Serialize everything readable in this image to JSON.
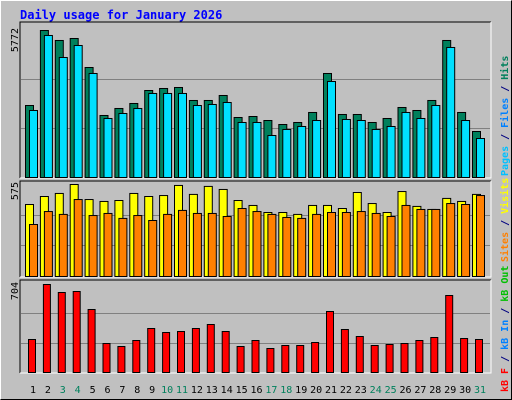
{
  "title": "Daily usage for January 2026",
  "chart_data": [
    {
      "type": "bar",
      "ylim": [
        0,
        5772
      ],
      "yticks": [
        5772
      ],
      "grid_lines": [
        1924,
        3848
      ],
      "legend": [
        {
          "name": "Pages",
          "color": "#00c0ff"
        },
        {
          "name": "/",
          "color": "#000080"
        },
        {
          "name": "Files",
          "color": "#0080ff"
        },
        {
          "name": "/",
          "color": "#000080"
        },
        {
          "name": "Hits",
          "color": "#00805c"
        }
      ],
      "series": [
        {
          "color": "#00805c",
          "values": [
            2827,
            5772,
            5380,
            5458,
            4319,
            2435,
            2710,
            2906,
            3416,
            3495,
            3534,
            3024,
            3024,
            3220,
            2356,
            2395,
            2238,
            2081,
            2160,
            2553,
            4084,
            2474,
            2474,
            2160,
            2317,
            2749,
            2631,
            3024,
            5380,
            2553,
            1806
          ]
        },
        {
          "color": "#00e0ff",
          "values": [
            2631,
            5576,
            4712,
            5183,
            4084,
            2317,
            2513,
            2710,
            3299,
            3299,
            3299,
            2827,
            2867,
            2945,
            2160,
            2160,
            1649,
            1885,
            2003,
            2238,
            3770,
            2278,
            2238,
            1885,
            2003,
            2553,
            2317,
            2827,
            5105,
            2238,
            1531
          ]
        }
      ]
    },
    {
      "type": "bar",
      "ylim": [
        0,
        575
      ],
      "yticks": [
        575
      ],
      "grid_lines": [
        192,
        383
      ],
      "legend": [
        {
          "name": "Sites",
          "color": "#ff8000"
        },
        {
          "name": "/",
          "color": "#000080"
        },
        {
          "name": "Visits",
          "color": "#ffff00"
        }
      ],
      "series": [
        {
          "color": "#ffff00",
          "values": [
            450,
            500,
            519,
            575,
            481,
            469,
            475,
            519,
            500,
            506,
            569,
            513,
            563,
            544,
            475,
            444,
            400,
            400,
            388,
            444,
            444,
            425,
            525,
            456,
            400,
            531,
            438,
            419,
            488,
            469,
            513
          ]
        },
        {
          "color": "#ff8000",
          "values": [
            325,
            406,
            388,
            481,
            381,
            394,
            363,
            381,
            350,
            388,
            413,
            394,
            394,
            375,
            425,
            406,
            388,
            369,
            363,
            388,
            400,
            400,
            406,
            394,
            375,
            444,
            419,
            419,
            456,
            450,
            506
          ]
        }
      ]
    },
    {
      "type": "bar",
      "ylim": [
        0,
        704
      ],
      "yticks": [
        704
      ],
      "grid_lines": [
        235,
        469
      ],
      "legend": [
        {
          "name": "kB F",
          "color": "#ff0000"
        },
        {
          "name": "/",
          "color": "#000080"
        },
        {
          "name": "kB In",
          "color": "#0080ff"
        },
        {
          "name": "/",
          "color": "#000080"
        },
        {
          "name": "kB Out",
          "color": "#00c000"
        }
      ],
      "categories": [
        "1",
        "2",
        "3",
        "4",
        "5",
        "6",
        "7",
        "8",
        "9",
        "10",
        "11",
        "12",
        "13",
        "14",
        "15",
        "16",
        "17",
        "18",
        "19",
        "20",
        "21",
        "22",
        "23",
        "24",
        "25",
        "26",
        "27",
        "28",
        "29",
        "30",
        "31"
      ],
      "weekend": [
        false,
        false,
        true,
        true,
        false,
        false,
        false,
        false,
        false,
        true,
        true,
        false,
        false,
        false,
        false,
        false,
        true,
        true,
        false,
        false,
        false,
        false,
        false,
        true,
        true,
        false,
        false,
        false,
        false,
        false,
        true
      ],
      "weekend_color": "#00805c",
      "series": [
        {
          "color": "#ff0000",
          "values": [
            264,
            704,
            640,
            648,
            504,
            232,
            208,
            256,
            352,
            320,
            328,
            352,
            384,
            328,
            208,
            256,
            192,
            216,
            216,
            240,
            488,
            344,
            288,
            216,
            224,
            232,
            256,
            280,
            616,
            272,
            264
          ]
        }
      ]
    }
  ]
}
